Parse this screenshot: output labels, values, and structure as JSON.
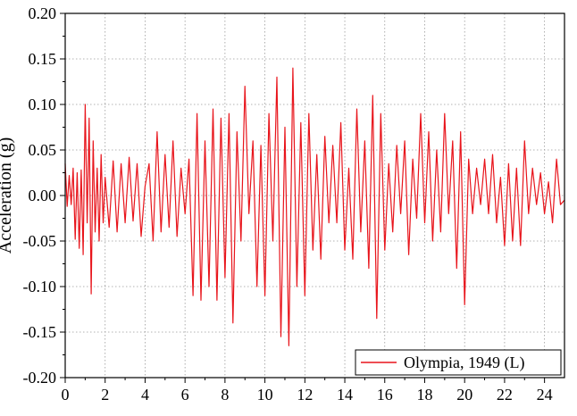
{
  "chart_data": {
    "type": "line",
    "title": "",
    "xlabel": "",
    "ylabel": "Acceleration (g)",
    "xlim": [
      0,
      25
    ],
    "ylim": [
      -0.2,
      0.2
    ],
    "x_ticks": [
      0,
      2,
      4,
      6,
      8,
      10,
      12,
      14,
      16,
      18,
      20,
      22,
      24
    ],
    "x_tick_labels": [
      "0",
      "2",
      "4",
      "6",
      "8",
      "10",
      "12",
      "14",
      "16",
      "18",
      "20",
      "22",
      "24"
    ],
    "y_ticks": [
      0.2,
      0.15,
      0.1,
      0.05,
      0.0,
      -0.05,
      -0.1,
      -0.15,
      -0.2
    ],
    "y_tick_labels": [
      "0.20",
      "0.15",
      "0.10",
      "0.05",
      "0.00",
      "-0.05",
      "-0.10",
      "-0.15",
      "-0.20"
    ],
    "grid": true,
    "legend_position": "bottom-right",
    "series": [
      {
        "name": "Olympia, 1949 (L)",
        "color": "#e8141b",
        "x": [
          0.0,
          0.1,
          0.2,
          0.3,
          0.4,
          0.5,
          0.6,
          0.7,
          0.8,
          0.9,
          1.0,
          1.1,
          1.2,
          1.3,
          1.4,
          1.5,
          1.6,
          1.7,
          1.8,
          1.9,
          2.0,
          2.2,
          2.4,
          2.6,
          2.8,
          3.0,
          3.2,
          3.4,
          3.6,
          3.8,
          4.0,
          4.2,
          4.4,
          4.6,
          4.8,
          5.0,
          5.2,
          5.4,
          5.6,
          5.8,
          6.0,
          6.2,
          6.4,
          6.6,
          6.8,
          7.0,
          7.2,
          7.4,
          7.6,
          7.8,
          8.0,
          8.2,
          8.4,
          8.6,
          8.8,
          9.0,
          9.2,
          9.4,
          9.6,
          9.8,
          10.0,
          10.2,
          10.4,
          10.6,
          10.8,
          11.0,
          11.2,
          11.4,
          11.6,
          11.8,
          12.0,
          12.2,
          12.4,
          12.6,
          12.8,
          13.0,
          13.2,
          13.4,
          13.6,
          13.8,
          14.0,
          14.2,
          14.4,
          14.6,
          14.8,
          15.0,
          15.2,
          15.4,
          15.6,
          15.8,
          16.0,
          16.2,
          16.4,
          16.6,
          16.8,
          17.0,
          17.2,
          17.4,
          17.6,
          17.8,
          18.0,
          18.2,
          18.4,
          18.6,
          18.8,
          19.0,
          19.2,
          19.4,
          19.6,
          19.8,
          20.0,
          20.2,
          20.4,
          20.6,
          20.8,
          21.0,
          21.2,
          21.4,
          21.6,
          21.8,
          22.0,
          22.2,
          22.4,
          22.6,
          22.8,
          23.0,
          23.2,
          23.4,
          23.6,
          23.8,
          24.0,
          24.2,
          24.4,
          24.6,
          24.8,
          25.0
        ],
        "values": [
          0.035,
          -0.012,
          0.022,
          -0.01,
          0.03,
          -0.048,
          0.025,
          -0.058,
          0.028,
          -0.065,
          0.1,
          -0.03,
          0.085,
          -0.108,
          0.06,
          -0.04,
          0.03,
          -0.05,
          0.045,
          -0.03,
          0.02,
          -0.035,
          0.038,
          -0.04,
          0.035,
          -0.03,
          0.042,
          -0.028,
          0.035,
          -0.045,
          0.01,
          0.035,
          -0.05,
          0.07,
          -0.04,
          0.045,
          -0.035,
          0.06,
          -0.045,
          0.03,
          -0.02,
          0.04,
          -0.11,
          0.09,
          -0.115,
          0.06,
          -0.1,
          0.095,
          -0.115,
          0.085,
          -0.09,
          0.09,
          -0.14,
          0.07,
          -0.05,
          0.12,
          -0.02,
          0.06,
          -0.1,
          0.055,
          -0.11,
          0.09,
          -0.05,
          0.13,
          -0.155,
          0.075,
          -0.165,
          0.14,
          -0.1,
          0.08,
          -0.11,
          0.09,
          -0.06,
          0.045,
          -0.07,
          0.065,
          -0.03,
          0.055,
          -0.03,
          0.08,
          -0.06,
          0.03,
          -0.07,
          0.095,
          -0.04,
          0.06,
          -0.08,
          0.11,
          -0.135,
          0.09,
          -0.06,
          0.035,
          -0.04,
          0.055,
          -0.02,
          0.06,
          -0.065,
          0.04,
          -0.025,
          0.09,
          -0.03,
          0.07,
          -0.05,
          0.05,
          -0.04,
          0.09,
          -0.02,
          0.06,
          -0.08,
          0.07,
          -0.12,
          0.04,
          -0.02,
          0.03,
          -0.01,
          0.04,
          -0.02,
          0.045,
          -0.03,
          0.02,
          -0.055,
          0.035,
          -0.05,
          0.03,
          -0.055,
          0.06,
          -0.02,
          0.03,
          -0.01,
          0.025,
          -0.02,
          0.015,
          -0.03,
          0.04,
          -0.01,
          -0.005
        ]
      }
    ]
  }
}
